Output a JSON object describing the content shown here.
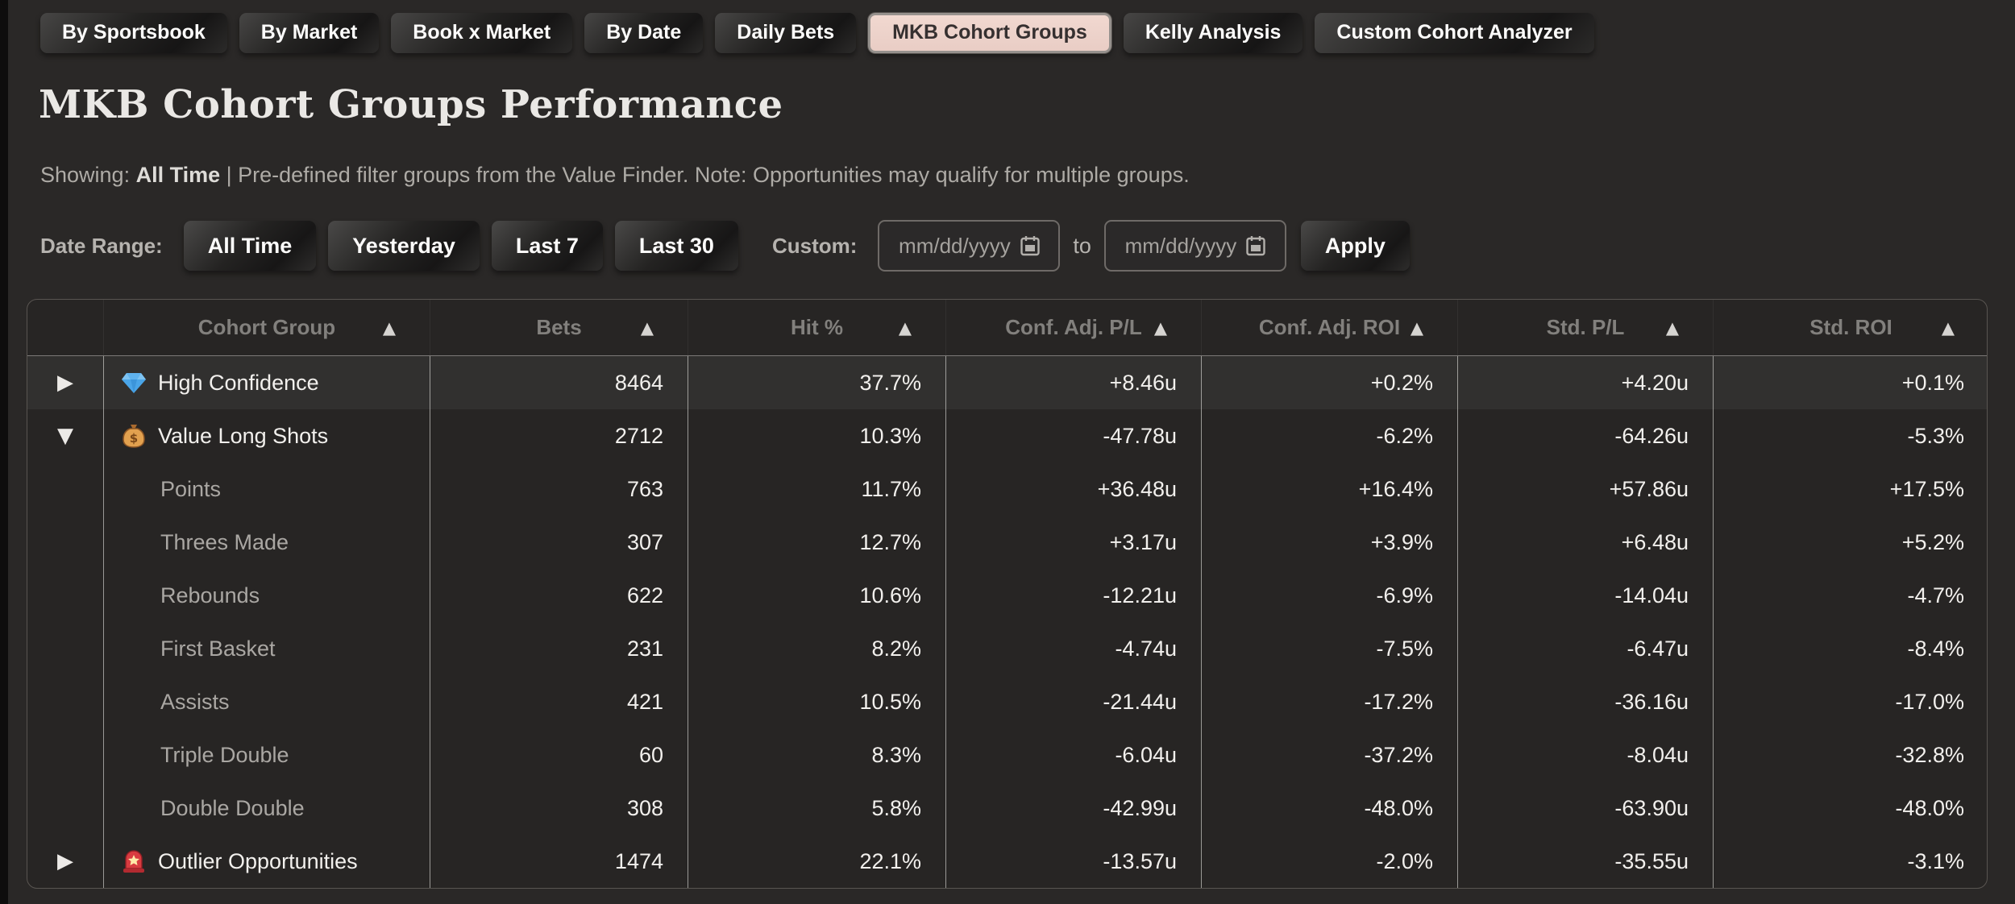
{
  "colors": {
    "accent_pink": "#e9cdc5",
    "positive_green": "#3fbd5c",
    "negative_red": "#e7464f",
    "background": "#2a2827"
  },
  "tabs": [
    {
      "label": "By Sportsbook",
      "active": false
    },
    {
      "label": "By Market",
      "active": false
    },
    {
      "label": "Book x Market",
      "active": false
    },
    {
      "label": "By Date",
      "active": false
    },
    {
      "label": "Daily Bets",
      "active": false
    },
    {
      "label": "MKB Cohort Groups",
      "active": true
    },
    {
      "label": "Kelly Analysis",
      "active": false
    },
    {
      "label": "Custom Cohort Analyzer",
      "active": false
    }
  ],
  "page": {
    "title": "MKB Cohort Groups Performance",
    "showing_label": "Showing: ",
    "showing_value": "All Time",
    "showing_note": " | Pre-defined filter groups from the Value Finder. Note: Opportunities may qualify for multiple groups."
  },
  "date_range": {
    "label": "Date Range:",
    "presets": [
      "All Time",
      "Yesterday",
      "Last 7",
      "Last 30"
    ],
    "custom_label": "Custom:",
    "start_placeholder": "mm/dd/yyyy",
    "to_label": "to",
    "end_placeholder": "mm/dd/yyyy",
    "apply_label": "Apply"
  },
  "table": {
    "columns": [
      {
        "label": "",
        "sortable": false
      },
      {
        "label": "Cohort Group",
        "sortable": true
      },
      {
        "label": "Bets",
        "sortable": true
      },
      {
        "label": "Hit %",
        "sortable": true
      },
      {
        "label": "Conf. Adj. P/L",
        "sortable": true
      },
      {
        "label": "Conf. Adj. ROI",
        "sortable": true
      },
      {
        "label": "Std. P/L",
        "sortable": true
      },
      {
        "label": "Std. ROI",
        "sortable": true
      }
    ],
    "rows": [
      {
        "type": "parent",
        "expanded": false,
        "highlight": true,
        "icon": "gem",
        "name": "High Confidence",
        "bets": "8464",
        "hit": "37.7%",
        "conf_adj_pl": "+8.46u",
        "conf_adj_roi": "+0.2%",
        "std_pl": "+4.20u",
        "std_roi": "+0.1%"
      },
      {
        "type": "parent",
        "expanded": true,
        "highlight": false,
        "icon": "money-bag",
        "name": "Value Long Shots",
        "bets": "2712",
        "hit": "10.3%",
        "conf_adj_pl": "-47.78u",
        "conf_adj_roi": "-6.2%",
        "std_pl": "-64.26u",
        "std_roi": "-5.3%"
      },
      {
        "type": "child",
        "name": "Points",
        "bets": "763",
        "hit": "11.7%",
        "conf_adj_pl": "+36.48u",
        "conf_adj_roi": "+16.4%",
        "std_pl": "+57.86u",
        "std_roi": "+17.5%"
      },
      {
        "type": "child",
        "name": "Threes Made",
        "bets": "307",
        "hit": "12.7%",
        "conf_adj_pl": "+3.17u",
        "conf_adj_roi": "+3.9%",
        "std_pl": "+6.48u",
        "std_roi": "+5.2%"
      },
      {
        "type": "child",
        "name": "Rebounds",
        "bets": "622",
        "hit": "10.6%",
        "conf_adj_pl": "-12.21u",
        "conf_adj_roi": "-6.9%",
        "std_pl": "-14.04u",
        "std_roi": "-4.7%"
      },
      {
        "type": "child",
        "name": "First Basket",
        "bets": "231",
        "hit": "8.2%",
        "conf_adj_pl": "-4.74u",
        "conf_adj_roi": "-7.5%",
        "std_pl": "-6.47u",
        "std_roi": "-8.4%"
      },
      {
        "type": "child",
        "name": "Assists",
        "bets": "421",
        "hit": "10.5%",
        "conf_adj_pl": "-21.44u",
        "conf_adj_roi": "-17.2%",
        "std_pl": "-36.16u",
        "std_roi": "-17.0%"
      },
      {
        "type": "child",
        "name": "Triple Double",
        "bets": "60",
        "hit": "8.3%",
        "conf_adj_pl": "-6.04u",
        "conf_adj_roi": "-37.2%",
        "std_pl": "-8.04u",
        "std_roi": "-32.8%"
      },
      {
        "type": "child",
        "name": "Double Double",
        "bets": "308",
        "hit": "5.8%",
        "conf_adj_pl": "-42.99u",
        "conf_adj_roi": "-48.0%",
        "std_pl": "-63.90u",
        "std_roi": "-48.0%"
      },
      {
        "type": "parent",
        "expanded": false,
        "highlight": false,
        "icon": "siren",
        "name": "Outlier Opportunities",
        "bets": "1474",
        "hit": "22.1%",
        "conf_adj_pl": "-13.57u",
        "conf_adj_roi": "-2.0%",
        "std_pl": "-35.55u",
        "std_roi": "-3.1%"
      }
    ]
  }
}
